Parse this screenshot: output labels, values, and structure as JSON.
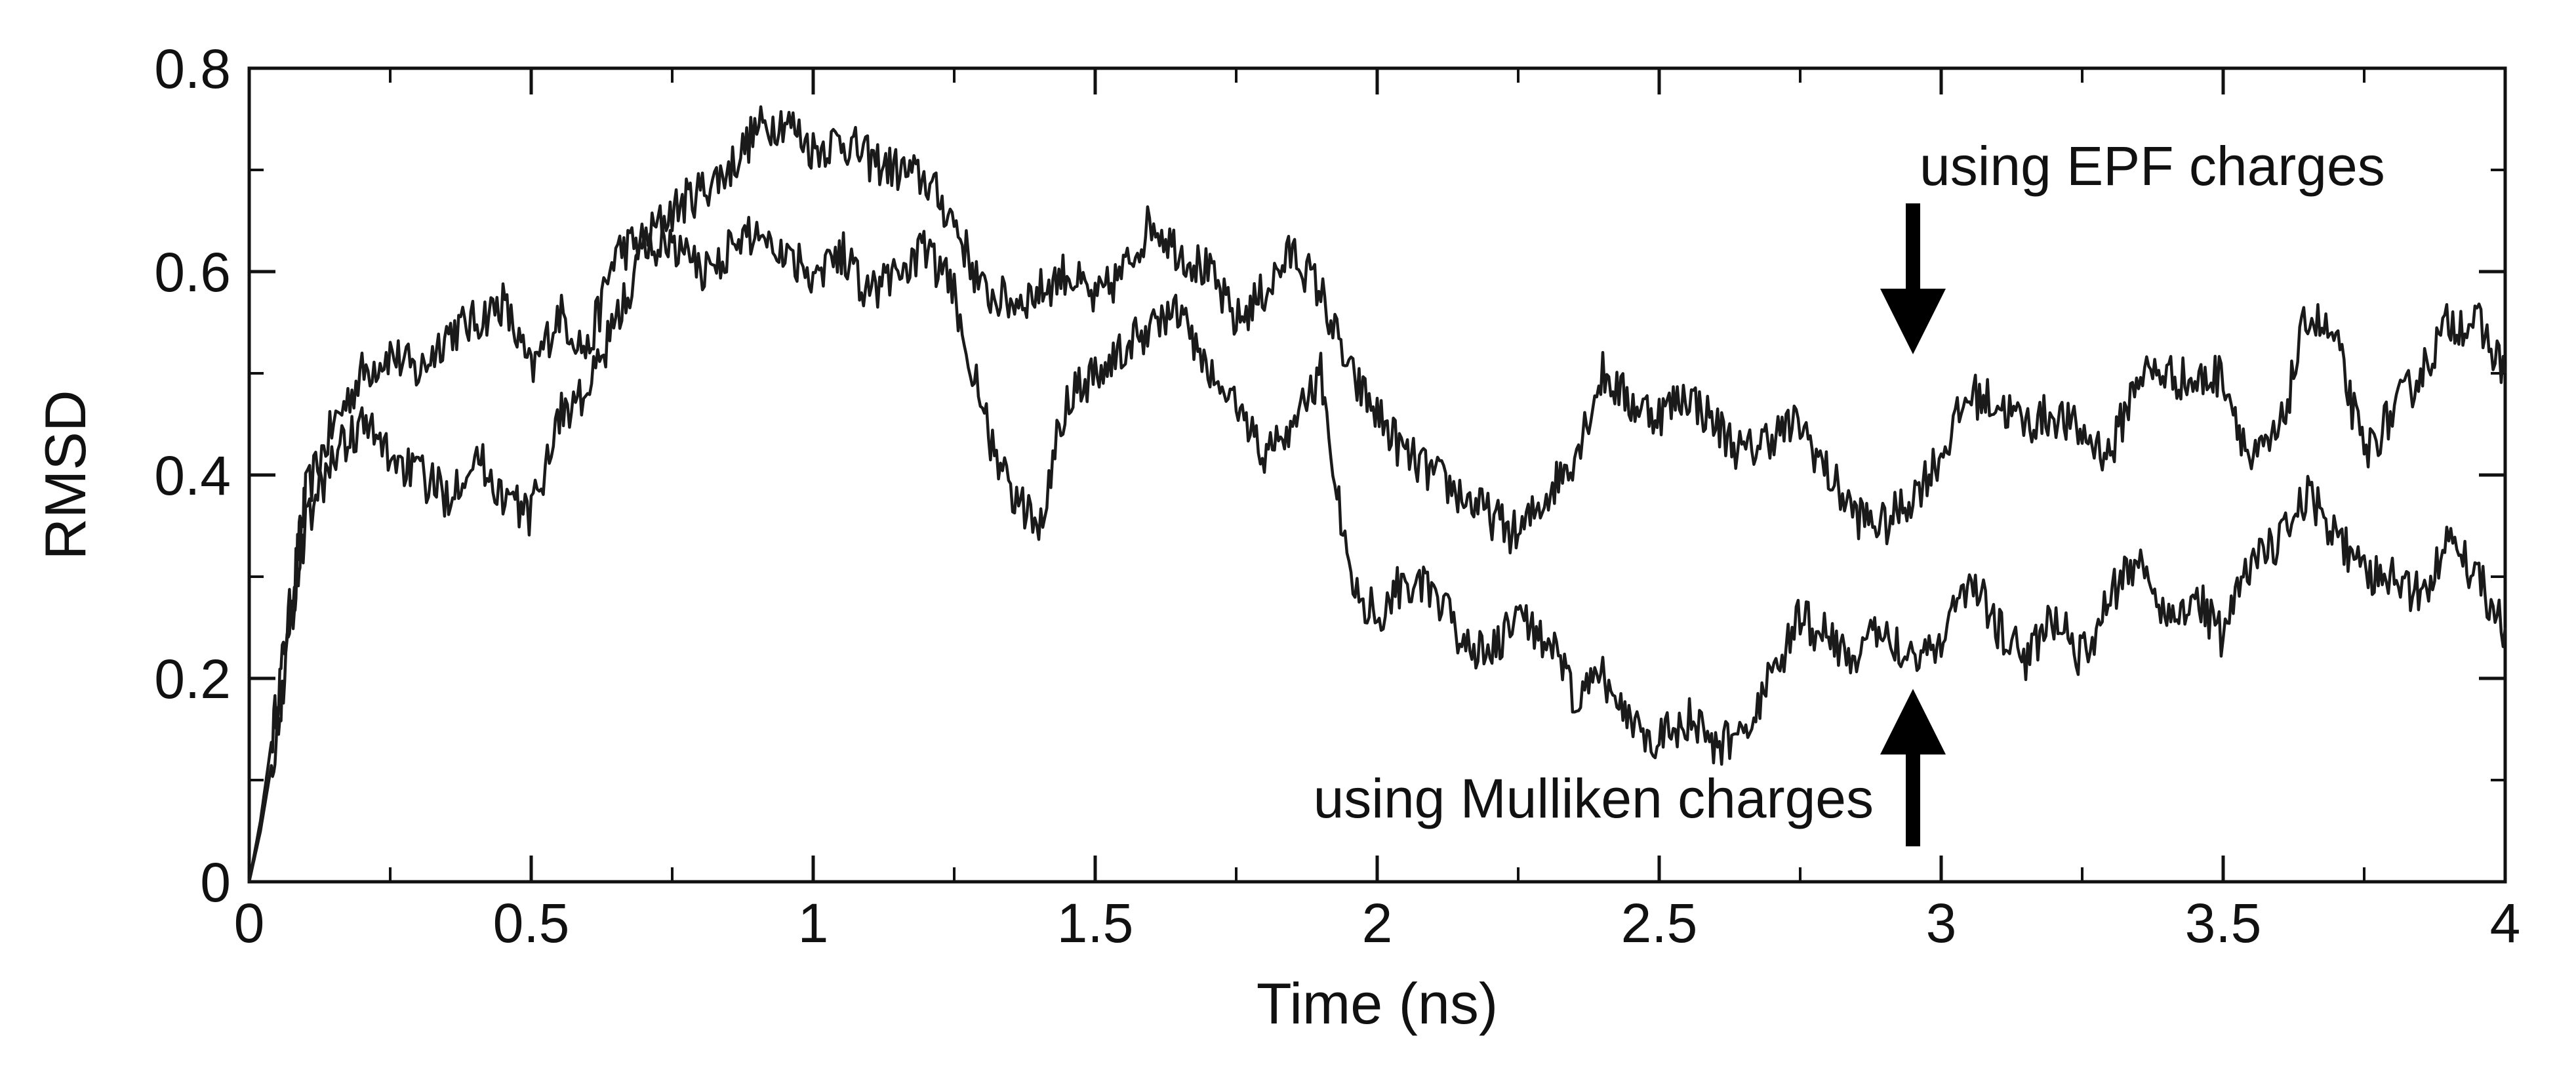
{
  "chart_data": {
    "type": "line",
    "xlabel": "Time (ns)",
    "ylabel": "RMSD",
    "xlim": [
      0,
      4
    ],
    "ylim": [
      0,
      0.8
    ],
    "x_ticks": [
      0,
      0.5,
      1,
      1.5,
      2,
      2.5,
      3,
      3.5,
      4
    ],
    "x_tick_labels": [
      "0",
      "0.5",
      "1",
      "1.5",
      "2",
      "2.5",
      "3",
      "3.5",
      "4"
    ],
    "y_ticks": [
      0,
      0.2,
      0.4,
      0.6,
      0.8
    ],
    "y_tick_labels": [
      "0",
      "0.2",
      "0.4",
      "0.6",
      "0.8"
    ],
    "grid": false,
    "series_color": "#1a1a1a",
    "annotations": [
      {
        "text": "using EPF charges",
        "x": 2.95,
        "y": 0.52,
        "arrow": "down"
      },
      {
        "text": "using Mulliken charges",
        "x": 2.95,
        "y": 0.2,
        "arrow": "up"
      }
    ],
    "series": [
      {
        "label": "using EPF charges",
        "x": [
          0,
          0.02,
          0.05,
          0.08,
          0.1,
          0.15,
          0.2,
          0.25,
          0.3,
          0.35,
          0.4,
          0.45,
          0.5,
          0.55,
          0.6,
          0.65,
          0.7,
          0.75,
          0.8,
          0.85,
          0.9,
          0.95,
          1.0,
          1.05,
          1.1,
          1.15,
          1.2,
          1.25,
          1.3,
          1.35,
          1.4,
          1.45,
          1.5,
          1.55,
          1.6,
          1.65,
          1.7,
          1.75,
          1.8,
          1.85,
          1.9,
          1.95,
          2.0,
          2.05,
          2.1,
          2.15,
          2.2,
          2.25,
          2.3,
          2.35,
          2.4,
          2.45,
          2.5,
          2.55,
          2.6,
          2.65,
          2.7,
          2.75,
          2.8,
          2.85,
          2.9,
          2.95,
          3.0,
          3.05,
          3.1,
          3.15,
          3.2,
          3.25,
          3.3,
          3.35,
          3.4,
          3.45,
          3.5,
          3.55,
          3.6,
          3.65,
          3.7,
          3.75,
          3.8,
          3.85,
          3.9,
          3.95,
          4.0
        ],
        "y": [
          0.0,
          0.06,
          0.18,
          0.3,
          0.38,
          0.45,
          0.5,
          0.52,
          0.5,
          0.54,
          0.55,
          0.57,
          0.5,
          0.56,
          0.52,
          0.62,
          0.63,
          0.66,
          0.68,
          0.7,
          0.74,
          0.75,
          0.72,
          0.73,
          0.71,
          0.7,
          0.69,
          0.65,
          0.58,
          0.57,
          0.58,
          0.6,
          0.57,
          0.6,
          0.65,
          0.62,
          0.6,
          0.55,
          0.58,
          0.62,
          0.58,
          0.5,
          0.46,
          0.42,
          0.4,
          0.38,
          0.36,
          0.34,
          0.38,
          0.42,
          0.5,
          0.47,
          0.46,
          0.48,
          0.45,
          0.42,
          0.44,
          0.45,
          0.4,
          0.36,
          0.35,
          0.38,
          0.42,
          0.48,
          0.47,
          0.45,
          0.46,
          0.44,
          0.42,
          0.5,
          0.5,
          0.49,
          0.5,
          0.41,
          0.44,
          0.56,
          0.53,
          0.42,
          0.46,
          0.5,
          0.55,
          0.55,
          0.5
        ]
      },
      {
        "label": "using Mulliken charges",
        "x": [
          0,
          0.02,
          0.05,
          0.08,
          0.1,
          0.15,
          0.2,
          0.25,
          0.3,
          0.35,
          0.4,
          0.45,
          0.5,
          0.55,
          0.6,
          0.65,
          0.7,
          0.75,
          0.8,
          0.85,
          0.9,
          0.95,
          1.0,
          1.05,
          1.1,
          1.15,
          1.2,
          1.25,
          1.3,
          1.35,
          1.4,
          1.45,
          1.5,
          1.55,
          1.6,
          1.65,
          1.7,
          1.75,
          1.8,
          1.85,
          1.9,
          1.95,
          2.0,
          2.05,
          2.1,
          2.15,
          2.2,
          2.25,
          2.3,
          2.35,
          2.4,
          2.45,
          2.5,
          2.55,
          2.6,
          2.65,
          2.7,
          2.75,
          2.8,
          2.85,
          2.9,
          2.95,
          3.0,
          3.05,
          3.1,
          3.15,
          3.2,
          3.25,
          3.3,
          3.35,
          3.4,
          3.45,
          3.5,
          3.55,
          3.6,
          3.65,
          3.7,
          3.75,
          3.8,
          3.85,
          3.9,
          3.95,
          4.0
        ],
        "y": [
          0.0,
          0.05,
          0.15,
          0.28,
          0.35,
          0.42,
          0.45,
          0.42,
          0.4,
          0.38,
          0.42,
          0.38,
          0.36,
          0.46,
          0.48,
          0.55,
          0.62,
          0.63,
          0.6,
          0.62,
          0.64,
          0.62,
          0.6,
          0.62,
          0.58,
          0.6,
          0.62,
          0.58,
          0.46,
          0.38,
          0.35,
          0.48,
          0.5,
          0.52,
          0.55,
          0.56,
          0.5,
          0.47,
          0.42,
          0.45,
          0.5,
          0.3,
          0.26,
          0.3,
          0.28,
          0.24,
          0.22,
          0.26,
          0.24,
          0.18,
          0.2,
          0.16,
          0.14,
          0.16,
          0.13,
          0.15,
          0.2,
          0.26,
          0.24,
          0.22,
          0.25,
          0.22,
          0.24,
          0.3,
          0.25,
          0.22,
          0.26,
          0.22,
          0.28,
          0.32,
          0.26,
          0.28,
          0.24,
          0.32,
          0.33,
          0.38,
          0.34,
          0.3,
          0.3,
          0.28,
          0.34,
          0.3,
          0.25
        ]
      }
    ]
  }
}
